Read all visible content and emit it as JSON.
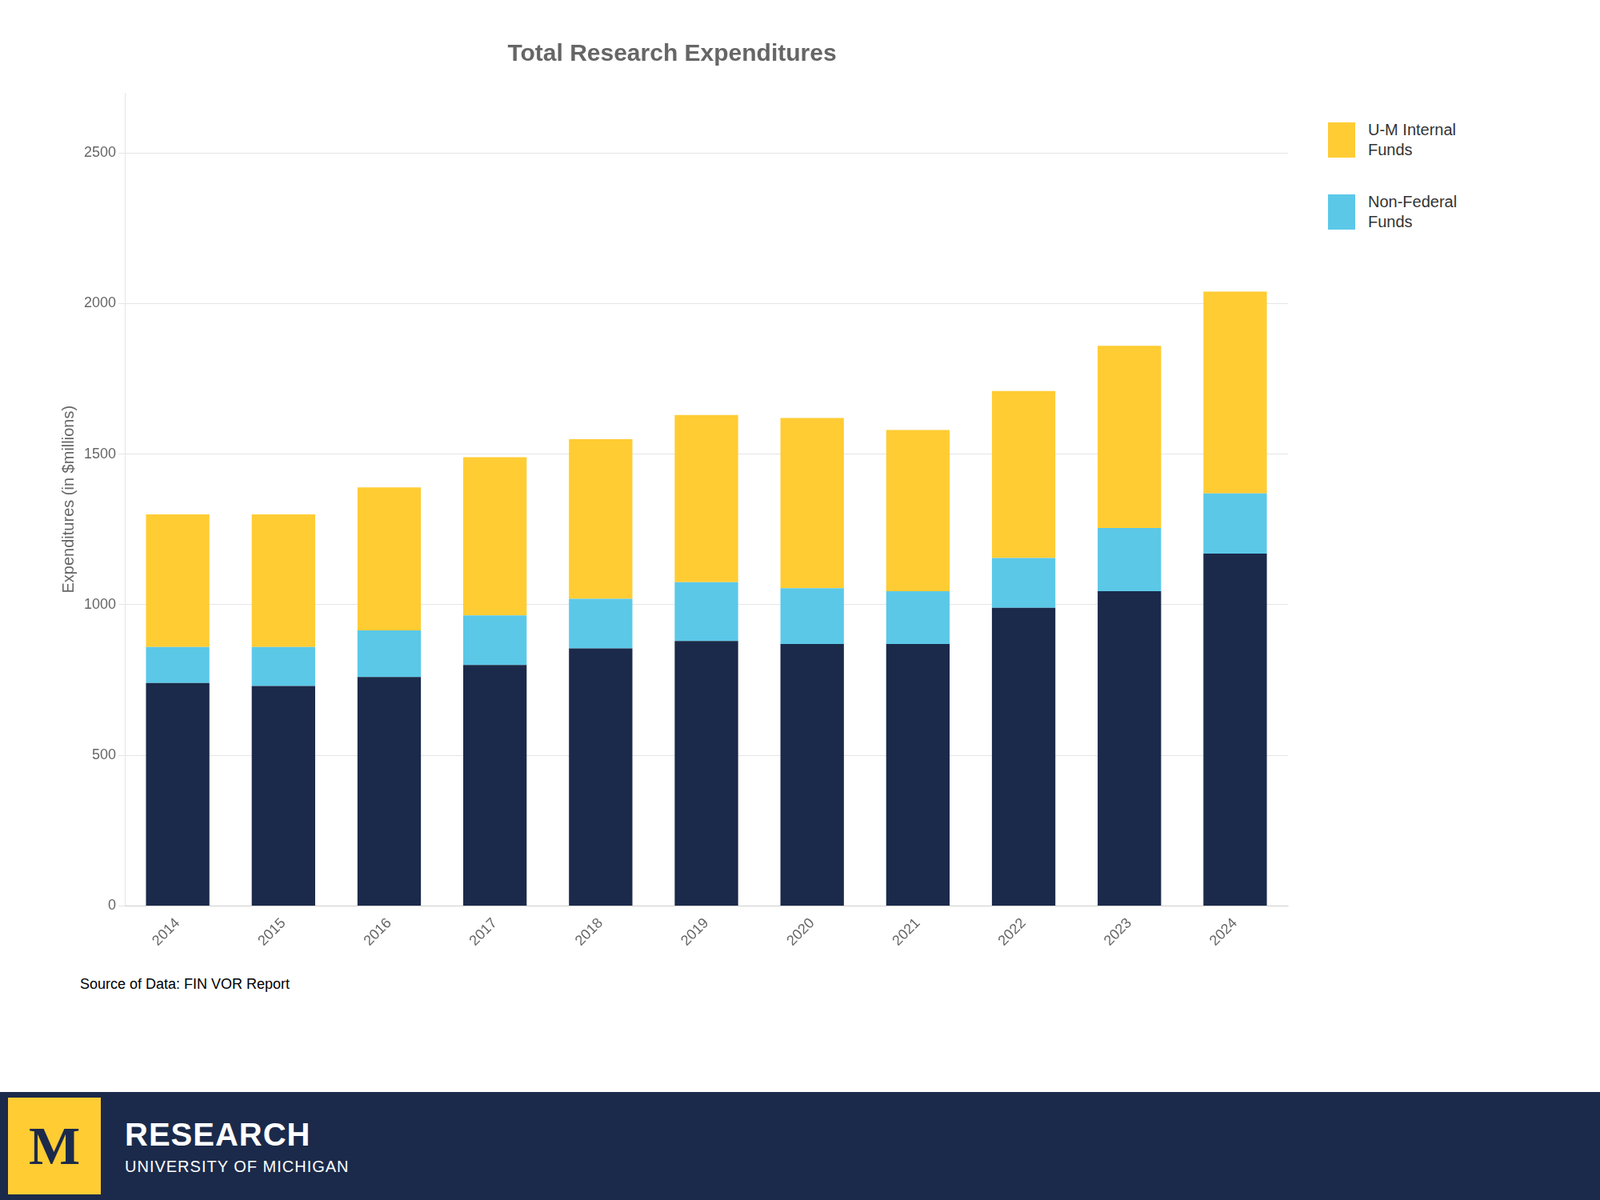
{
  "chart_data": {
    "type": "bar",
    "stacked": true,
    "title": "Total Research Expenditures",
    "ylabel": "Expenditures (in $millions)",
    "categories": [
      "2014",
      "2015",
      "2016",
      "2017",
      "2018",
      "2019",
      "2020",
      "2021",
      "2022",
      "2023",
      "2024"
    ],
    "series": [
      {
        "color": "#1B2A4A",
        "values": [
          740,
          730,
          760,
          800,
          855,
          880,
          870,
          870,
          990,
          1045,
          1170
        ]
      },
      {
        "name": "Non-Federal\nFunds",
        "color": "#5BC8E8",
        "values": [
          120,
          130,
          155,
          165,
          165,
          195,
          185,
          175,
          165,
          210,
          200
        ]
      },
      {
        "name": "U-M Internal\nFunds",
        "color": "#FFCC33",
        "values": [
          440,
          440,
          475,
          525,
          530,
          555,
          565,
          535,
          555,
          605,
          670
        ]
      }
    ],
    "ylim": [
      0,
      2700
    ],
    "yticks": [
      0,
      500,
      1000,
      1500,
      2000,
      2500
    ],
    "grid": true,
    "legend": "right",
    "annotations": [
      "Source of Data: FIN VOR Report",
      "M",
      "RESEARCH",
      "UNIVERSITY OF MICHIGAN"
    ]
  }
}
